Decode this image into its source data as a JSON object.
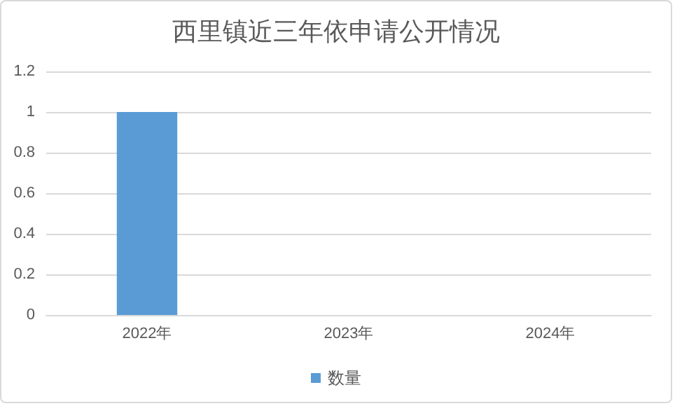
{
  "chart_data": {
    "type": "bar",
    "title": "西里镇近三年依申请公开情况",
    "categories": [
      "2022年",
      "2023年",
      "2024年"
    ],
    "series": [
      {
        "name": "数量",
        "color": "#5b9bd5",
        "values": [
          1,
          0,
          0
        ]
      }
    ],
    "ylim": [
      0,
      1.2
    ],
    "yticks": [
      0,
      0.2,
      0.4,
      0.6,
      0.8,
      1,
      1.2
    ],
    "grid": "y",
    "legend": "bottom"
  }
}
